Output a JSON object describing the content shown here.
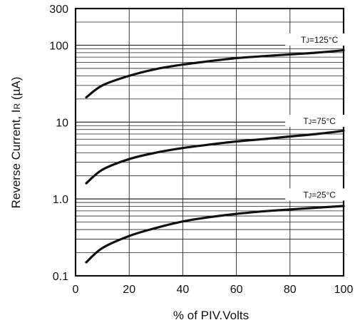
{
  "chart_data": {
    "type": "line",
    "xlabel": "% of PIV.Volts",
    "ylabel": "Reverse Current, I",
    "ylabel_subscript": "R",
    "ylabel_unit": " (µA)",
    "xlim": [
      0,
      100
    ],
    "ylim": [
      0.1,
      300
    ],
    "y_scale": "log",
    "x_ticks": [
      0,
      20,
      40,
      60,
      80,
      100
    ],
    "x_tick_labels": [
      "0",
      "20",
      "40",
      "60",
      "80",
      "100"
    ],
    "y_ticks": [
      0.1,
      1,
      10,
      100,
      300
    ],
    "y_tick_labels": [
      "0.1",
      "1.0",
      "10",
      "100",
      "300"
    ],
    "grid": true,
    "series": [
      {
        "name": "TJ=125°C",
        "label_main": "T",
        "label_sub": "J",
        "label_tail": "=125°C",
        "x": [
          4,
          10,
          20,
          30,
          40,
          50,
          60,
          70,
          80,
          90,
          100
        ],
        "y": [
          21,
          30,
          40,
          49,
          56,
          62,
          68,
          72,
          76,
          80,
          86
        ]
      },
      {
        "name": "TJ=75°C",
        "label_main": "T",
        "label_sub": "J",
        "label_tail": "=75°C",
        "x": [
          4,
          10,
          20,
          30,
          40,
          50,
          60,
          70,
          80,
          90,
          100
        ],
        "y": [
          1.6,
          2.4,
          3.3,
          4.0,
          4.6,
          5.1,
          5.6,
          6.0,
          6.5,
          7.0,
          7.7
        ]
      },
      {
        "name": "TJ=25°C",
        "label_main": "T",
        "label_sub": "J",
        "label_tail": "=25°C",
        "x": [
          4,
          10,
          20,
          30,
          40,
          50,
          60,
          70,
          80,
          90,
          100
        ],
        "y": [
          0.15,
          0.23,
          0.33,
          0.42,
          0.51,
          0.58,
          0.64,
          0.69,
          0.73,
          0.77,
          0.81
        ]
      }
    ]
  }
}
